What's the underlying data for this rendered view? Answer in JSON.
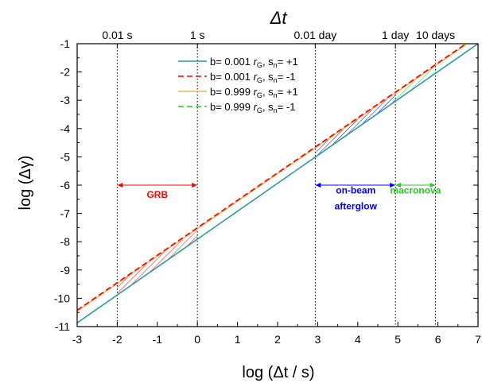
{
  "chart_data": {
    "type": "line",
    "xlabel": "log (Δt / s)",
    "ylabel": "log (Δγ)",
    "top_axis_title": "Δt",
    "xlim": [
      -3,
      7
    ],
    "ylim": [
      -11,
      -1
    ],
    "x_ticks": [
      "-3",
      "-2",
      "-1",
      "0",
      "1",
      "2",
      "3",
      "4",
      "5",
      "6",
      "7"
    ],
    "y_ticks": [
      "-11",
      "-10",
      "-9",
      "-8",
      "-7",
      "-6",
      "-5",
      "-4",
      "-3",
      "-2",
      "-1"
    ],
    "top_ticks": [
      {
        "x": -2.0,
        "label": "0.01 s"
      },
      {
        "x": 0.0,
        "label": "1 s"
      },
      {
        "x": 2.94,
        "label": "0.01 day"
      },
      {
        "x": 4.94,
        "label": "1 day"
      },
      {
        "x": 5.94,
        "label": "10 days"
      }
    ],
    "vertical_lines_at": [
      -2.0,
      0.0,
      2.94,
      4.94,
      5.94
    ],
    "series": [
      {
        "name": "b= 0.001 rG, sn= +1",
        "color": "#2a9d9d",
        "dash": "solid",
        "x": [
          -3,
          7
        ],
        "y": [
          -10.87,
          -1.0
        ]
      },
      {
        "name": "b= 0.001 rG, sn= -1",
        "color": "#ff0000",
        "dash": "dashed",
        "x": [
          -3,
          6.7
        ],
        "y": [
          -10.42,
          -1.0
        ]
      },
      {
        "name": "b= 0.999 rG, sn= +1",
        "color": "#f0b45a",
        "dash": "solid",
        "x": [
          -3,
          6.7
        ],
        "y": [
          -10.45,
          -1.03
        ]
      },
      {
        "name": "b= 0.999 rG, sn= -1",
        "color": "#22cc22",
        "dash": "dashed",
        "x": [
          -3,
          6.7
        ],
        "y": [
          -10.43,
          -1.01
        ]
      }
    ],
    "legend_labels": [
      {
        "pre": "b= 0.001 ",
        "r": "r",
        "rsub": "G",
        "mid": ", s",
        "ssub": "n",
        "post": "= +1"
      },
      {
        "pre": "b= 0.001 ",
        "r": "r",
        "rsub": "G",
        "mid": ", s",
        "ssub": "n",
        "post": "= -1"
      },
      {
        "pre": "b= 0.999 ",
        "r": "r",
        "rsub": "G",
        "mid": ", s",
        "ssub": "n",
        "post": "= +1"
      },
      {
        "pre": "b= 0.999 ",
        "r": "r",
        "rsub": "G",
        "mid": ", s",
        "ssub": "n",
        "post": "= -1"
      }
    ],
    "legend_position": "top-center",
    "shaded_regions": [
      {
        "name": "GRB",
        "x": [
          -2.0,
          0.0
        ],
        "color": "#ff0000"
      },
      {
        "name": "on-beam afterglow",
        "x": [
          2.94,
          4.94
        ],
        "color": "#0000ff"
      },
      {
        "name": "macronova",
        "x": [
          4.94,
          5.94
        ],
        "color": "#22cc22"
      }
    ],
    "annotations": [
      {
        "text": "GRB",
        "x": -1.0,
        "y": -6.45,
        "color": "#ff0000",
        "arrow_x": [
          -2.0,
          0.0
        ],
        "arrow_y": -6.0
      },
      {
        "text": "on-beam",
        "x": 3.95,
        "y": -6.3,
        "color": "#0000ff",
        "arrow_x": [
          2.94,
          4.94
        ],
        "arrow_y": -6.0
      },
      {
        "text": "afterglow",
        "x": 3.95,
        "y": -6.85,
        "color": "#0000ff"
      },
      {
        "text": "macronova",
        "x": 5.44,
        "y": -6.3,
        "color": "#22cc22",
        "arrow_x": [
          4.94,
          5.94
        ],
        "arrow_y": -6.0
      }
    ],
    "grid": false
  }
}
